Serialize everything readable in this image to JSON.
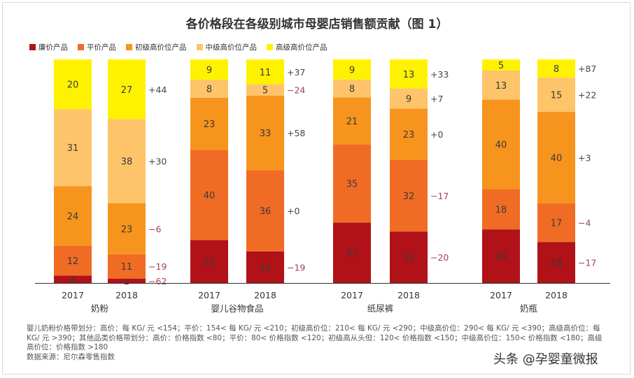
{
  "title": "各价格段在各级别城市母婴店销售额贡献（图 1）",
  "chart_data": {
    "type": "bar",
    "stacked": true,
    "normalized": true,
    "title": "各价格段在各级别城市母婴店销售额贡献（图 1）",
    "legend_position": "top-left",
    "series_names": [
      "廉价产品",
      "平价产品",
      "初级高价位产品",
      "中级高价位产品",
      "高级高价位产品"
    ],
    "colors": [
      "#b01218",
      "#f06c24",
      "#f7941d",
      "#fdc46a",
      "#fff200"
    ],
    "groups": [
      {
        "category": "奶粉",
        "bars": [
          {
            "year": "2017",
            "values": [
              3,
              12,
              24,
              31,
              20
            ]
          },
          {
            "year": "2018",
            "values": [
              2,
              11,
              23,
              38,
              27
            ]
          }
        ],
        "changes": [
          "−62",
          "−19",
          "−6",
          "+30",
          "+44"
        ]
      },
      {
        "category": "婴儿谷物食品",
        "bars": [
          {
            "year": "2017",
            "values": [
              19,
              40,
              23,
              8,
              9
            ]
          },
          {
            "year": "2018",
            "values": [
              14,
              36,
              33,
              5,
              11
            ]
          }
        ],
        "changes": [
          "−19",
          "+0",
          "+58",
          "−24",
          "+37"
        ]
      },
      {
        "category": "纸尿裤",
        "bars": [
          {
            "year": "2017",
            "values": [
              27,
              35,
              21,
              8,
              9
            ]
          },
          {
            "year": "2018",
            "values": [
              23,
              32,
              23,
              9,
              13
            ]
          }
        ],
        "changes": [
          "−20",
          "−17",
          "+0",
          "+7",
          "+33"
        ]
      },
      {
        "category": "奶瓶",
        "bars": [
          {
            "year": "2017",
            "values": [
              24,
              18,
              40,
              13,
              5
            ]
          },
          {
            "year": "2018",
            "values": [
              18,
              17,
              40,
              15,
              8
            ]
          }
        ],
        "changes": [
          "−17",
          "−4",
          "+3",
          "+22",
          "+87"
        ]
      }
    ],
    "positive_color": "#444444",
    "negative_color": "#a3405a"
  },
  "footnote": {
    "line1": "婴儿奶粉价格带划分：高价：每 KG/ 元 <154；平价：154< 每 KG/ 元 <210；初级高价位：210< 每 KG/ 元 <290；中级高价位：290< 每 KG/ 元 <390；高级高价位：每 KG/ 元 >390；其他品类价格带划分：高价：价格指数 <80；平价：80< 价格指数 <120；初级高从头但：120< 价格指数 <150；中级高价位：150< 价格指数 <180；高级高价位：价格指数 >180",
    "source": "数据来源：尼尔森零售指数"
  },
  "watermark": "头条 @孕婴童微报"
}
